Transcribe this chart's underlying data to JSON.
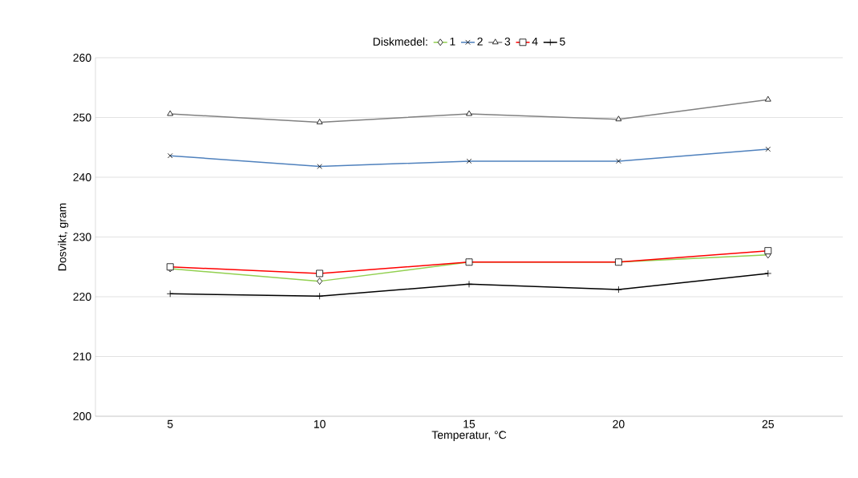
{
  "chart_data": {
    "type": "line",
    "xlabel": "Temperatur, °C",
    "ylabel": "Dosvikt, gram",
    "legend_title": "Diskmedel:",
    "categories": [
      "5",
      "10",
      "15",
      "20",
      "25"
    ],
    "series": [
      {
        "name": "1",
        "color": "#92d050",
        "marker": "diamond",
        "values": [
          224.7,
          222.6,
          225.8,
          225.8,
          227.0
        ]
      },
      {
        "name": "2",
        "color": "#4f81bd",
        "marker": "cross",
        "values": [
          243.6,
          241.8,
          242.7,
          242.7,
          244.7
        ]
      },
      {
        "name": "3",
        "color": "#808080",
        "marker": "triangle",
        "values": [
          250.6,
          249.2,
          250.6,
          249.7,
          253.0
        ]
      },
      {
        "name": "4",
        "color": "#ff0000",
        "marker": "square",
        "values": [
          225.0,
          223.9,
          225.8,
          225.8,
          227.7
        ]
      },
      {
        "name": "5",
        "color": "#000000",
        "marker": "plus",
        "values": [
          220.5,
          220.1,
          222.1,
          221.2,
          223.9
        ]
      }
    ],
    "ylim": [
      200,
      260
    ],
    "yticks": [
      200,
      210,
      220,
      230,
      240,
      250,
      260
    ],
    "grid": "y",
    "legend": "top",
    "line_style": "solid"
  }
}
